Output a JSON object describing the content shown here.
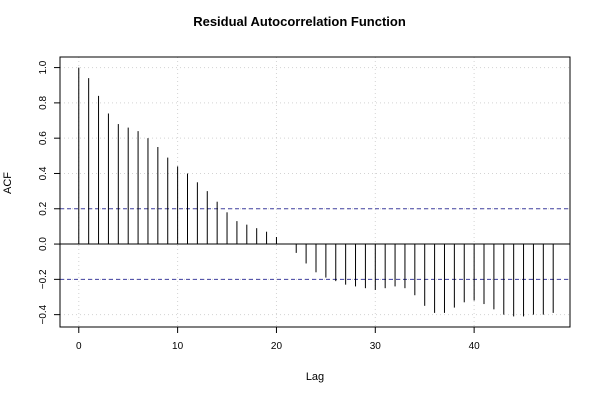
{
  "chart_data": {
    "type": "bar",
    "title": "Residual Autocorrelation Function",
    "xlabel": "Lag",
    "ylabel": "ACF",
    "xlim": [
      -1.9,
      49.7
    ],
    "ylim": [
      -0.47,
      1.06
    ],
    "x_ticks": [
      0,
      10,
      20,
      30,
      40
    ],
    "y_ticks": [
      -0.4,
      -0.2,
      0.0,
      0.2,
      0.4,
      0.6,
      0.8,
      1.0
    ],
    "x_tick_labels": [
      "0",
      "10",
      "20",
      "30",
      "40"
    ],
    "y_tick_labels": [
      "−0.4",
      "−0.2",
      "0.0",
      "0.2",
      "0.4",
      "0.6",
      "0.8",
      "1.0"
    ],
    "grid": true,
    "confidence_bounds": [
      0.2,
      -0.2
    ],
    "colors": {
      "bars": "#000000",
      "bounds": "#4040a0",
      "grid": "#d3d3d3"
    },
    "lags": [
      0,
      1,
      2,
      3,
      4,
      5,
      6,
      7,
      8,
      9,
      10,
      11,
      12,
      13,
      14,
      15,
      16,
      17,
      18,
      19,
      20,
      21,
      22,
      23,
      24,
      25,
      26,
      27,
      28,
      29,
      30,
      31,
      32,
      33,
      34,
      35,
      36,
      37,
      38,
      39,
      40,
      41,
      42,
      43,
      44,
      45,
      46,
      47,
      48
    ],
    "values": [
      1.0,
      0.94,
      0.84,
      0.74,
      0.68,
      0.66,
      0.64,
      0.6,
      0.55,
      0.49,
      0.44,
      0.4,
      0.35,
      0.3,
      0.24,
      0.18,
      0.13,
      0.11,
      0.09,
      0.07,
      0.04,
      0.0,
      -0.05,
      -0.11,
      -0.16,
      -0.19,
      -0.21,
      -0.23,
      -0.24,
      -0.25,
      -0.26,
      -0.25,
      -0.24,
      -0.25,
      -0.29,
      -0.35,
      -0.39,
      -0.39,
      -0.36,
      -0.33,
      -0.32,
      -0.34,
      -0.37,
      -0.4,
      -0.41,
      -0.41,
      -0.4,
      -0.4,
      -0.39
    ]
  }
}
